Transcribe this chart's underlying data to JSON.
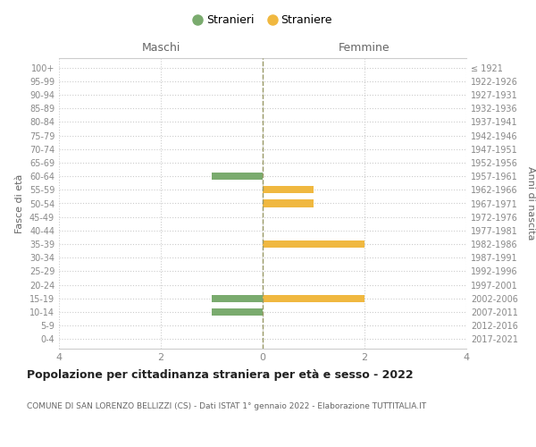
{
  "age_groups": [
    "0-4",
    "5-9",
    "10-14",
    "15-19",
    "20-24",
    "25-29",
    "30-34",
    "35-39",
    "40-44",
    "45-49",
    "50-54",
    "55-59",
    "60-64",
    "65-69",
    "70-74",
    "75-79",
    "80-84",
    "85-89",
    "90-94",
    "95-99",
    "100+"
  ],
  "birth_years": [
    "2017-2021",
    "2012-2016",
    "2007-2011",
    "2002-2006",
    "1997-2001",
    "1992-1996",
    "1987-1991",
    "1982-1986",
    "1977-1981",
    "1972-1976",
    "1967-1971",
    "1962-1966",
    "1957-1961",
    "1952-1956",
    "1947-1951",
    "1942-1946",
    "1937-1941",
    "1932-1936",
    "1927-1931",
    "1922-1926",
    "≤ 1921"
  ],
  "maschi": [
    0,
    0,
    -1,
    -1,
    0,
    0,
    0,
    0,
    0,
    0,
    0,
    0,
    -1,
    0,
    0,
    0,
    0,
    0,
    0,
    0,
    0
  ],
  "femmine": [
    0,
    0,
    0,
    2,
    0,
    0,
    0,
    2,
    0,
    0,
    1,
    1,
    0,
    0,
    0,
    0,
    0,
    0,
    0,
    0,
    0
  ],
  "color_maschi": "#7aab6e",
  "color_femmine": "#f0b840",
  "title": "Popolazione per cittadinanza straniera per età e sesso - 2022",
  "subtitle": "COMUNE DI SAN LORENZO BELLIZZI (CS) - Dati ISTAT 1° gennaio 2022 - Elaborazione TUTTITALIA.IT",
  "legend_stranieri": "Stranieri",
  "legend_straniere": "Straniere",
  "xlabel_left": "Maschi",
  "xlabel_right": "Femmine",
  "ylabel_left": "Fasce di età",
  "ylabel_right": "Anni di nascita",
  "xlim": [
    -4,
    4
  ],
  "xticks": [
    -4,
    -2,
    0,
    2,
    4
  ],
  "xticklabels": [
    "4",
    "2",
    "0",
    "2",
    "4"
  ],
  "background_color": "#ffffff",
  "grid_color": "#cccccc",
  "grid_color_dotted": "#cccccc",
  "vline_color": "#999966",
  "tick_color": "#888888",
  "label_color": "#666666",
  "title_color": "#222222",
  "subtitle_color": "#666666"
}
